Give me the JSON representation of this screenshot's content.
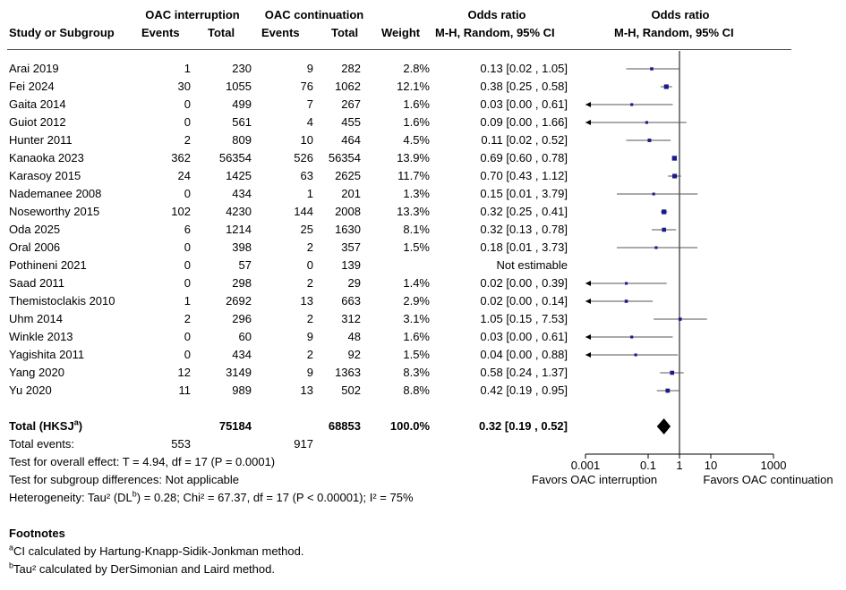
{
  "header": {
    "group1": "OAC interruption",
    "group2": "OAC continuation",
    "or_text_title": "Odds ratio",
    "or_plot_title": "Odds ratio",
    "study": "Study or Subgroup",
    "events1": "Events",
    "total1": "Total",
    "events2": "Events",
    "total2": "Total",
    "weight": "Weight",
    "method_text": "M-H, Random, 95% CI",
    "method_plot": "M-H, Random, 95% CI"
  },
  "studies": [
    {
      "name": "Arai 2019",
      "e1": "1",
      "t1": "230",
      "e2": "9",
      "t2": "282",
      "weight": "2.8%",
      "ci": "0.13 [0.02 , 1.05]"
    },
    {
      "name": "Fei 2024",
      "e1": "30",
      "t1": "1055",
      "e2": "76",
      "t2": "1062",
      "weight": "12.1%",
      "ci": "0.38 [0.25 , 0.58]"
    },
    {
      "name": "Gaita 2014",
      "e1": "0",
      "t1": "499",
      "e2": "7",
      "t2": "267",
      "weight": "1.6%",
      "ci": "0.03 [0.00 , 0.61]"
    },
    {
      "name": "Guiot 2012",
      "e1": "0",
      "t1": "561",
      "e2": "4",
      "t2": "455",
      "weight": "1.6%",
      "ci": "0.09 [0.00 , 1.66]"
    },
    {
      "name": "Hunter 2011",
      "e1": "2",
      "t1": "809",
      "e2": "10",
      "t2": "464",
      "weight": "4.5%",
      "ci": "0.11 [0.02 , 0.52]"
    },
    {
      "name": "Kanaoka 2023",
      "e1": "362",
      "t1": "56354",
      "e2": "526",
      "t2": "56354",
      "weight": "13.9%",
      "ci": "0.69 [0.60 , 0.78]"
    },
    {
      "name": "Karasoy 2015",
      "e1": "24",
      "t1": "1425",
      "e2": "63",
      "t2": "2625",
      "weight": "11.7%",
      "ci": "0.70 [0.43 , 1.12]"
    },
    {
      "name": "Nademanee 2008",
      "e1": "0",
      "t1": "434",
      "e2": "1",
      "t2": "201",
      "weight": "1.3%",
      "ci": "0.15 [0.01 , 3.79]"
    },
    {
      "name": "Noseworthy 2015",
      "e1": "102",
      "t1": "4230",
      "e2": "144",
      "t2": "2008",
      "weight": "13.3%",
      "ci": "0.32 [0.25 , 0.41]"
    },
    {
      "name": "Oda 2025",
      "e1": "6",
      "t1": "1214",
      "e2": "25",
      "t2": "1630",
      "weight": "8.1%",
      "ci": "0.32 [0.13 , 0.78]"
    },
    {
      "name": "Oral 2006",
      "e1": "0",
      "t1": "398",
      "e2": "2",
      "t2": "357",
      "weight": "1.5%",
      "ci": "0.18 [0.01 , 3.73]"
    },
    {
      "name": "Pothineni 2021",
      "e1": "0",
      "t1": "57",
      "e2": "0",
      "t2": "139",
      "weight": "",
      "ci": "Not estimable"
    },
    {
      "name": "Saad 2011",
      "e1": "0",
      "t1": "298",
      "e2": "2",
      "t2": "29",
      "weight": "1.4%",
      "ci": "0.02 [0.00 , 0.39]"
    },
    {
      "name": "Themistoclakis 2010",
      "e1": "1",
      "t1": "2692",
      "e2": "13",
      "t2": "663",
      "weight": "2.9%",
      "ci": "0.02 [0.00 , 0.14]"
    },
    {
      "name": "Uhm 2014",
      "e1": "2",
      "t1": "296",
      "e2": "2",
      "t2": "312",
      "weight": "3.1%",
      "ci": "1.05 [0.15 , 7.53]"
    },
    {
      "name": "Winkle 2013",
      "e1": "0",
      "t1": "60",
      "e2": "9",
      "t2": "48",
      "weight": "1.6%",
      "ci": "0.03 [0.00 , 0.61]"
    },
    {
      "name": "Yagishita 2011",
      "e1": "0",
      "t1": "434",
      "e2": "2",
      "t2": "92",
      "weight": "1.5%",
      "ci": "0.04 [0.00 , 0.88]"
    },
    {
      "name": "Yang 2020",
      "e1": "12",
      "t1": "3149",
      "e2": "9",
      "t2": "1363",
      "weight": "8.3%",
      "ci": "0.58 [0.24 , 1.37]"
    },
    {
      "name": "Yu 2020",
      "e1": "11",
      "t1": "989",
      "e2": "13",
      "t2": "502",
      "weight": "8.8%",
      "ci": "0.42 [0.19 , 0.95]"
    }
  ],
  "total": {
    "label": "Total (HKSJ",
    "sup": "a",
    "label_end": ")",
    "t1": "75184",
    "t2": "68853",
    "weight": "100.0%",
    "ci": "0.32 [0.19 , 0.52]"
  },
  "events": {
    "label": "Total events:",
    "e1": "553",
    "e2": "917"
  },
  "notes": {
    "overall": "Test for overall effect: T = 4.94, df = 17 (P = 0.0001)",
    "subgroup": "Test for subgroup differences: Not applicable",
    "het_pre": "Heterogeneity: Tau² (DL",
    "het_sup": "b",
    "het_post": ") = 0.28; Chi² = 67.37, df = 17 (P < 0.00001); I² = 75%"
  },
  "footnotes": {
    "title": "Footnotes",
    "a_sup": "a",
    "a_text": "CI calculated by Hartung-Knapp-Sidik-Jonkman method.",
    "b_sup": "b",
    "b_text": "Tau² calculated by DerSimonian and Laird method."
  },
  "chart_data": {
    "type": "forest",
    "scale": "log",
    "xlim": [
      0.001,
      1000
    ],
    "ticks": [
      0.001,
      0.1,
      1,
      10,
      1000
    ],
    "tick_labels": [
      "0.001",
      "0.1",
      "1",
      "10",
      "1000"
    ],
    "favors_left": "Favors OAC interruption",
    "favors_right": "Favors OAC continuation",
    "points": [
      {
        "or": 0.13,
        "lo": 0.02,
        "hi": 1.05,
        "w": 2.8
      },
      {
        "or": 0.38,
        "lo": 0.25,
        "hi": 0.58,
        "w": 12.1
      },
      {
        "or": 0.03,
        "lo": 0.0,
        "hi": 0.61,
        "w": 1.6
      },
      {
        "or": 0.09,
        "lo": 0.0,
        "hi": 1.66,
        "w": 1.6
      },
      {
        "or": 0.11,
        "lo": 0.02,
        "hi": 0.52,
        "w": 4.5
      },
      {
        "or": 0.69,
        "lo": 0.6,
        "hi": 0.78,
        "w": 13.9
      },
      {
        "or": 0.7,
        "lo": 0.43,
        "hi": 1.12,
        "w": 11.7
      },
      {
        "or": 0.15,
        "lo": 0.01,
        "hi": 3.79,
        "w": 1.3
      },
      {
        "or": 0.32,
        "lo": 0.25,
        "hi": 0.41,
        "w": 13.3
      },
      {
        "or": 0.32,
        "lo": 0.13,
        "hi": 0.78,
        "w": 8.1
      },
      {
        "or": 0.18,
        "lo": 0.01,
        "hi": 3.73,
        "w": 1.5
      },
      null,
      {
        "or": 0.02,
        "lo": 0.0,
        "hi": 0.39,
        "w": 1.4
      },
      {
        "or": 0.02,
        "lo": 0.0,
        "hi": 0.14,
        "w": 2.9
      },
      {
        "or": 1.05,
        "lo": 0.15,
        "hi": 7.53,
        "w": 3.1
      },
      {
        "or": 0.03,
        "lo": 0.0,
        "hi": 0.61,
        "w": 1.6
      },
      {
        "or": 0.04,
        "lo": 0.0,
        "hi": 0.88,
        "w": 1.5
      },
      {
        "or": 0.58,
        "lo": 0.24,
        "hi": 1.37,
        "w": 8.3
      },
      {
        "or": 0.42,
        "lo": 0.19,
        "hi": 0.95,
        "w": 8.8
      }
    ],
    "total": {
      "or": 0.32,
      "lo": 0.19,
      "hi": 0.52
    },
    "marker_color": "#1a1a8c"
  }
}
